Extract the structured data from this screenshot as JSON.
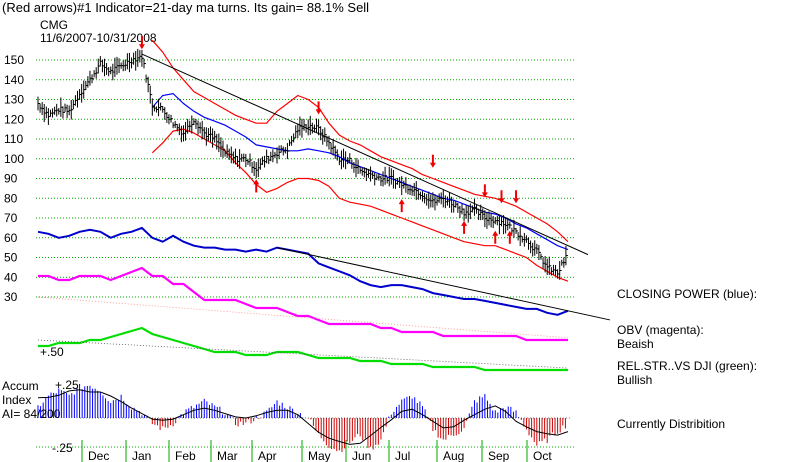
{
  "chart_data": {
    "type": "line",
    "header": "(Red arrows)#1 Indicator=21-day ma turns. Its gain= 88.1% Sell",
    "symbol": "CMG",
    "date_range": "11/6/2007-10/31/2008",
    "y_ticks": [
      150,
      140,
      130,
      120,
      110,
      100,
      90,
      80,
      70,
      60,
      50,
      40,
      30
    ],
    "ylim": [
      25,
      165
    ],
    "x_ticks": [
      "Dec",
      "Jan",
      "Feb",
      "Mar",
      "Apr",
      "May",
      "Jun",
      "Jul",
      "Aug",
      "Sep",
      "Oct"
    ],
    "weeks": [
      0,
      1,
      2,
      3,
      4,
      5,
      6,
      7,
      8,
      9,
      10,
      11,
      12,
      13,
      14,
      15,
      16,
      17,
      18,
      19,
      20,
      21,
      22,
      23,
      24,
      25,
      26,
      27,
      28,
      29,
      30,
      31,
      32,
      33,
      34,
      35,
      36,
      37,
      38,
      39,
      40,
      41,
      42,
      43,
      44,
      45,
      46,
      47,
      48,
      49,
      50,
      51
    ],
    "series": [
      {
        "name": "price",
        "color": "#000000",
        "values": [
          128,
          122,
          125,
          124,
          133,
          140,
          148,
          144,
          147,
          150,
          152,
          127,
          125,
          118,
          113,
          120,
          113,
          110,
          103,
          100,
          100,
          95,
          100,
          103,
          105,
          115,
          117,
          115,
          108,
          100,
          99,
          94,
          92,
          90,
          90,
          87,
          85,
          82,
          78,
          80,
          77,
          73,
          74,
          70,
          69,
          67,
          63,
          59,
          53,
          45,
          42,
          52
        ]
      },
      {
        "name": "moving average",
        "color": "#0000ff",
        "values": [
          null,
          null,
          null,
          null,
          null,
          null,
          null,
          null,
          null,
          null,
          null,
          126,
          132,
          133,
          128,
          124,
          121,
          119,
          117,
          114,
          111,
          107,
          106,
          105,
          104,
          104,
          105,
          104,
          103,
          101,
          98,
          96,
          94,
          92,
          90,
          88,
          86,
          84,
          82,
          80,
          79,
          77,
          75,
          73,
          72,
          70,
          67,
          65,
          62,
          59,
          56,
          54
        ]
      },
      {
        "name": "upper band",
        "color": "#ff0000",
        "values": [
          null,
          null,
          null,
          null,
          null,
          null,
          null,
          null,
          null,
          null,
          null,
          160,
          154,
          146,
          140,
          134,
          131,
          128,
          125,
          122,
          120,
          118,
          118,
          124,
          128,
          132,
          130,
          126,
          118,
          112,
          109,
          107,
          104,
          101,
          99,
          97,
          95,
          92,
          90,
          88,
          86,
          84,
          82,
          81,
          80,
          78,
          76,
          73,
          70,
          67,
          63,
          58
        ]
      },
      {
        "name": "lower band",
        "color": "#ff0000",
        "values": [
          null,
          null,
          null,
          null,
          null,
          null,
          null,
          null,
          null,
          null,
          null,
          103,
          108,
          114,
          115,
          113,
          110,
          107,
          104,
          98,
          93,
          87,
          83,
          85,
          88,
          90,
          90,
          89,
          86,
          80,
          78,
          77,
          76,
          74,
          72,
          70,
          68,
          66,
          64,
          62,
          60,
          58,
          57,
          56,
          56,
          54,
          52,
          50,
          46,
          43,
          40,
          38
        ]
      },
      {
        "name": "closing power",
        "color": "#0000cc",
        "values": [
          63,
          62,
          60,
          61,
          63,
          64,
          63,
          60,
          62,
          63,
          65,
          60,
          58,
          61,
          58,
          56,
          55,
          55,
          54,
          54,
          53,
          54,
          53,
          55,
          54,
          53,
          52,
          47,
          45,
          43,
          41,
          38,
          36,
          35,
          36,
          36,
          35,
          34,
          32,
          31,
          30,
          29,
          29,
          28,
          27,
          26,
          25,
          24,
          24,
          22,
          21,
          23
        ]
      }
    ],
    "trendlines": [
      {
        "from": [
          10,
          153
        ],
        "to": [
          51,
          56
        ]
      },
      {
        "from": [
          23,
          55
        ],
        "to": [
          51,
          23
        ]
      }
    ],
    "sell_arrows": [
      {
        "week": 10,
        "price": 158
      },
      {
        "week": 27,
        "price": 125
      },
      {
        "week": 38,
        "price": 98
      },
      {
        "week": 43,
        "price": 83
      },
      {
        "week": 44.6,
        "price": 80
      },
      {
        "week": 46,
        "price": 80
      }
    ],
    "buy_arrows": [
      {
        "week": 21,
        "price": 87
      },
      {
        "week": 35,
        "price": 77
      },
      {
        "week": 41,
        "price": 66
      },
      {
        "week": 44,
        "price": 61
      },
      {
        "week": 45.4,
        "price": 61
      }
    ],
    "panels": {
      "obv": [
        3,
        3,
        2.5,
        2.5,
        3,
        3,
        3,
        2.5,
        3,
        3.5,
        4,
        3,
        3,
        2,
        2,
        1,
        0,
        0,
        0,
        0,
        -0.5,
        -1,
        -1,
        -1,
        -1.5,
        -2,
        -2,
        -2.5,
        -3,
        -3,
        -3,
        -3,
        -3,
        -3.5,
        -3.5,
        -4,
        -4,
        -4,
        -4,
        -4.5,
        -4.5,
        -4.5,
        -4.5,
        -4.5,
        -4.5,
        -4.5,
        -4.5,
        -5,
        -5,
        -5,
        -5,
        -5
      ],
      "rel_strength": [
        0,
        0,
        0.5,
        0.5,
        0.5,
        1,
        1,
        1.5,
        2,
        2.5,
        3,
        2,
        1.5,
        1,
        0.5,
        0,
        -0.5,
        -1,
        -1,
        -1,
        -1.5,
        -1.5,
        -1.5,
        -1,
        -1,
        -1,
        -1.5,
        -2,
        -2,
        -2,
        -2,
        -2.5,
        -2.5,
        -2.5,
        -3,
        -3,
        -3,
        -3,
        -3.5,
        -3.5,
        -3.5,
        -3.5,
        -3.5,
        -4,
        -4,
        -4,
        -4,
        -4,
        -4,
        -4,
        -4,
        -4
      ],
      "accum": [
        0.1,
        0.2,
        0.25,
        0.2,
        0.28,
        0.3,
        0.25,
        0.15,
        0.2,
        0.1,
        0.05,
        -0.05,
        -0.1,
        -0.05,
        0.05,
        0.1,
        0.15,
        0.1,
        0.05,
        -0.05,
        -0.05,
        0.0,
        0.05,
        0.15,
        0.1,
        0.05,
        0.0,
        -0.15,
        -0.25,
        -0.3,
        -0.22,
        -0.15,
        -0.28,
        -0.2,
        0.05,
        0.15,
        0.2,
        0.1,
        -0.1,
        -0.2,
        -0.15,
        -0.1,
        0.15,
        0.2,
        0.05,
        0.1,
        0.05,
        -0.1,
        -0.25,
        -0.2,
        -0.12,
        -0.05
      ]
    },
    "panel_labels": {
      "half": "+.50",
      "accum_title_1": "Accum",
      "accum_title_2": "Index",
      "ai": "AI= 84/200",
      "plus25": "+.25",
      "minus25": "-.25"
    },
    "side_labels": {
      "closing_power": "CLOSING POWER (blue):",
      "obv_1": "OBV (magenta):",
      "obv_2": "Beaish",
      "rel_1": "REL.STR..VS DJI (green):",
      "rel_2": "Bullish",
      "accum_status": "Currently Distribition"
    },
    "colors": {
      "grid": "#00aa00",
      "obv": "#ff00ff",
      "rel_strength": "#00dd00",
      "accum_pos": "#0000ff",
      "accum_neg": "#cc0000",
      "arrows": "#ee0000"
    }
  }
}
